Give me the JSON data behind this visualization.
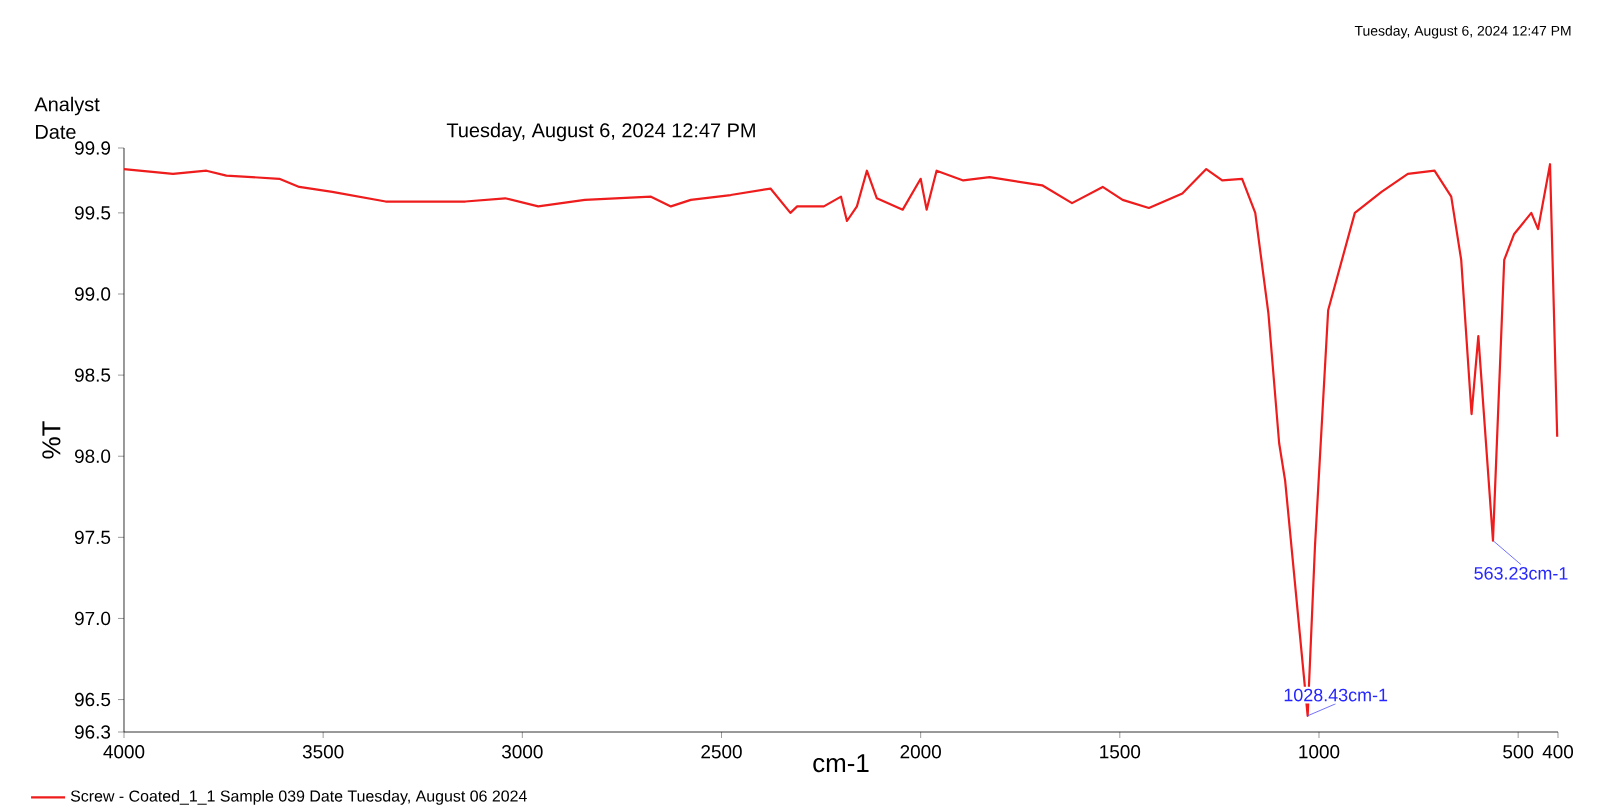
{
  "chart_data": {
    "type": "line",
    "xlabel": "cm-1",
    "ylabel": "%T",
    "x": [
      4000,
      3877,
      3793,
      3743,
      3610,
      3560,
      3477,
      3343,
      3143,
      3043,
      2960,
      2843,
      2677,
      2627,
      2577,
      2477,
      2377,
      2327,
      2310,
      2243,
      2200,
      2185,
      2160,
      2135,
      2110,
      2045,
      2000,
      1985,
      1960,
      1893,
      1827,
      1695,
      1620,
      1543,
      1493,
      1427,
      1343,
      1283,
      1243,
      1193,
      1160,
      1127,
      1100,
      1085,
      1028.43,
      1010,
      977,
      910,
      843,
      777,
      710,
      668,
      643,
      617,
      600,
      563.23,
      535,
      510,
      467,
      450,
      420,
      402
    ],
    "series": [
      {
        "name": "Screw - Coated_1_1     Sample 039 Date Tuesday, August 06 2024",
        "color": "#ee1c1c",
        "values": [
          99.77,
          99.74,
          99.76,
          99.73,
          99.71,
          99.66,
          99.63,
          99.57,
          99.57,
          99.59,
          99.54,
          99.58,
          99.6,
          99.54,
          99.58,
          99.61,
          99.65,
          99.5,
          99.54,
          99.54,
          99.6,
          99.45,
          99.54,
          99.76,
          99.59,
          99.52,
          99.71,
          99.52,
          99.76,
          99.7,
          99.72,
          99.67,
          99.56,
          99.66,
          99.58,
          99.53,
          99.62,
          99.77,
          99.7,
          99.71,
          99.5,
          98.88,
          98.08,
          97.85,
          96.4,
          97.45,
          98.9,
          99.5,
          99.63,
          99.74,
          99.76,
          99.6,
          99.21,
          98.26,
          98.74,
          97.48,
          99.21,
          99.37,
          99.5,
          99.4,
          99.8,
          98.12
        ]
      }
    ],
    "xlim": [
      4000,
      400
    ],
    "xticks": [
      4000,
      3500,
      3000,
      2500,
      2000,
      1500,
      1000,
      500,
      400
    ],
    "ylim": [
      96.3,
      99.9
    ],
    "yticks": [
      96.3,
      96.5,
      {
        "value": 97,
        "label": "97.0"
      },
      97.5,
      {
        "value": 98,
        "label": "98.0"
      },
      98.5,
      {
        "value": 99,
        "label": "99.0"
      },
      99.5,
      99.9
    ],
    "annotations": [
      "Analyst",
      "Date",
      "Tuesday, August 6, 2024 12:47 PM",
      "Tuesday, August 6, 2024 12:47 PM",
      {
        "text": "1028.43cm-1",
        "x": 1028.43,
        "y": 96.4
      },
      {
        "text": "563.23cm-1",
        "x": 563.23,
        "y": 97.48
      }
    ],
    "grid": false,
    "legend": "bottom",
    "marker": "none",
    "line_style": "solid"
  }
}
